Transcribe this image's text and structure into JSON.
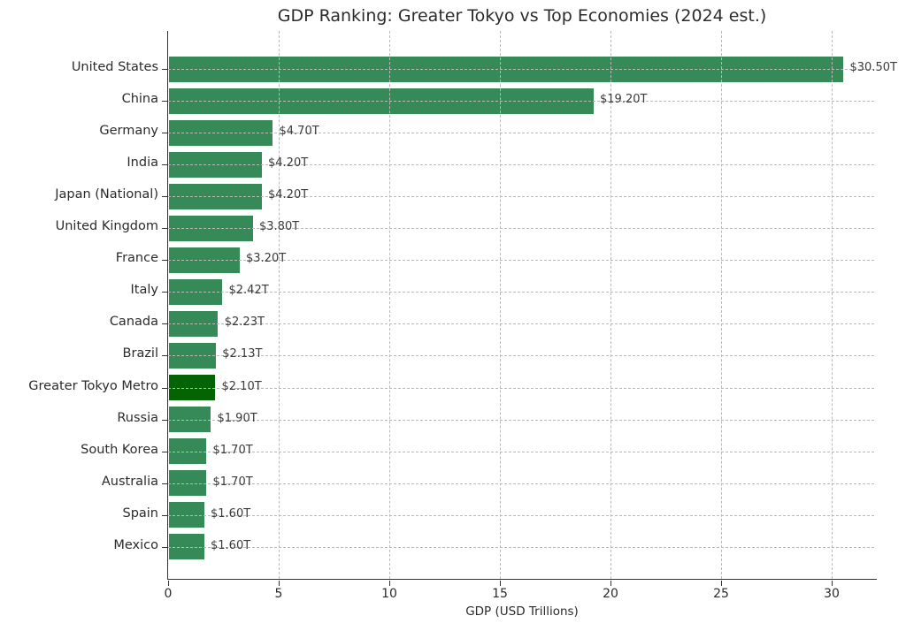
{
  "chart_data": {
    "type": "bar",
    "orientation": "horizontal",
    "title": "GDP Ranking: Greater Tokyo vs Top Economies (2024 est.)",
    "xlabel": "GDP (USD Trillions)",
    "categories": [
      "United States",
      "China",
      "Germany",
      "India",
      "Japan (National)",
      "United Kingdom",
      "France",
      "Italy",
      "Canada",
      "Brazil",
      "Greater Tokyo Metro",
      "Russia",
      "South Korea",
      "Australia",
      "Spain",
      "Mexico"
    ],
    "values": [
      30.5,
      19.2,
      4.7,
      4.2,
      4.2,
      3.8,
      3.2,
      2.42,
      2.23,
      2.13,
      2.1,
      1.9,
      1.7,
      1.7,
      1.6,
      1.6
    ],
    "value_labels": [
      "$30.50T",
      "$19.20T",
      "$4.70T",
      "$4.20T",
      "$4.20T",
      "$3.80T",
      "$3.20T",
      "$2.42T",
      "$2.23T",
      "$2.13T",
      "$2.10T",
      "$1.90T",
      "$1.70T",
      "$1.70T",
      "$1.60T",
      "$1.60T"
    ],
    "highlight_category": "Greater Tokyo Metro",
    "xlim": [
      0,
      32
    ],
    "xticks": [
      0,
      5,
      10,
      15,
      20,
      25,
      30
    ],
    "grid": "dashed-both-axes",
    "legend": "none",
    "colors": {
      "bar": "#358a57",
      "highlight_bar": "#046404",
      "text": "#2b2b2b",
      "grid": "#b9b9b9",
      "background": "#ffffff"
    }
  }
}
